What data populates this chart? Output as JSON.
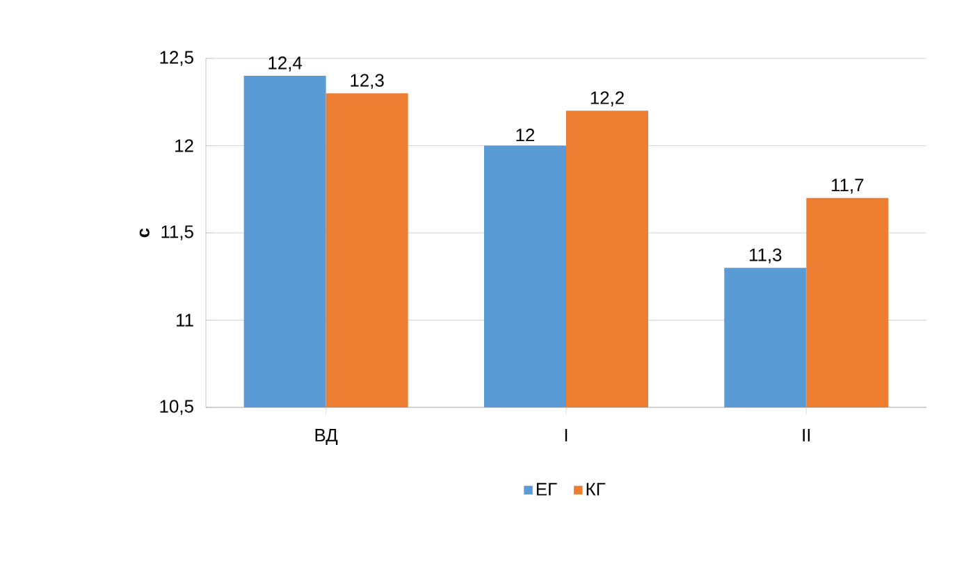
{
  "chart_data": {
    "type": "bar",
    "ylabel": "с",
    "categories": [
      "ВД",
      "I",
      "II"
    ],
    "series": [
      {
        "name": "ЕГ",
        "color": "#5b9bd5",
        "values": [
          12.4,
          12.0,
          11.3
        ],
        "value_labels": [
          "12,4",
          "12",
          "11,3"
        ]
      },
      {
        "name": "КГ",
        "color": "#ed7d31",
        "values": [
          12.3,
          12.2,
          11.7
        ],
        "value_labels": [
          "12,3",
          "12,2",
          "11,7"
        ]
      }
    ],
    "ylim": [
      10.5,
      12.5
    ],
    "yticks": [
      {
        "value": 10.5,
        "label": "10,5"
      },
      {
        "value": 11,
        "label": "11"
      },
      {
        "value": 11.5,
        "label": "11,5"
      },
      {
        "value": 12,
        "label": "12"
      },
      {
        "value": 12.5,
        "label": "12,5"
      }
    ],
    "grid": "y",
    "legend": "bottom"
  }
}
